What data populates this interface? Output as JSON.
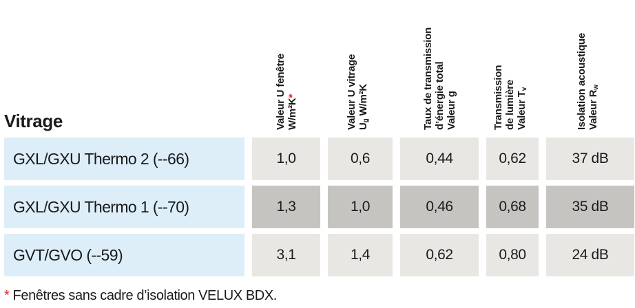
{
  "colors": {
    "row_label_bg": "#ddeef9",
    "cell_bg_light": "#e9e7e3",
    "cell_bg_dark": "#c6c4c1",
    "accent_red": "#e8262b",
    "text": "#1a1a1a"
  },
  "table": {
    "title": "Vitrage",
    "columns": [
      {
        "name": "valeur-u-fenetre",
        "lines": [
          [
            {
              "t": "Valeur U fenêtre"
            }
          ],
          [
            {
              "t": "W/m²K"
            },
            {
              "t": "*",
              "style": "star"
            }
          ]
        ]
      },
      {
        "name": "valeur-u-vitrage",
        "lines": [
          [
            {
              "t": "Valeur U vitrage"
            }
          ],
          [
            {
              "t": "U"
            },
            {
              "t": "g",
              "style": "sub"
            },
            {
              "t": " W/m²K"
            }
          ]
        ]
      },
      {
        "name": "taux-transmission-energie",
        "lines": [
          [
            {
              "t": "Taux de transmission"
            }
          ],
          [
            {
              "t": "d’énergie total"
            }
          ],
          [
            {
              "t": "Valeur g"
            }
          ]
        ]
      },
      {
        "name": "transmission-lumiere",
        "lines": [
          [
            {
              "t": "Transmission"
            }
          ],
          [
            {
              "t": "de lumière"
            }
          ],
          [
            {
              "t": "Valeur T"
            },
            {
              "t": "v",
              "style": "sub"
            }
          ]
        ]
      },
      {
        "name": "isolation-acoustique",
        "lines": [
          [
            {
              "t": "Isolation acoustique"
            }
          ],
          [
            {
              "t": "Valeur R"
            },
            {
              "t": "w",
              "style": "sub"
            }
          ]
        ]
      }
    ],
    "rows": [
      {
        "label": "GXL/GXU Thermo 2 (--66)",
        "shade": "light",
        "values": [
          "1,0",
          "0,6",
          "0,44",
          "0,62",
          "37 dB"
        ]
      },
      {
        "label": "GXL/GXU Thermo 1 (--70)",
        "shade": "dark",
        "values": [
          "1,3",
          "1,0",
          "0,46",
          "0,68",
          "35 dB"
        ]
      },
      {
        "label": "GVT/GVO (--59)",
        "shade": "light",
        "values": [
          "3,1",
          "1,4",
          "0,62",
          "0,80",
          "24 dB"
        ]
      }
    ]
  },
  "footnote": {
    "marker": "*",
    "text": " Fenêtres sans cadre d’isolation VELUX BDX."
  }
}
